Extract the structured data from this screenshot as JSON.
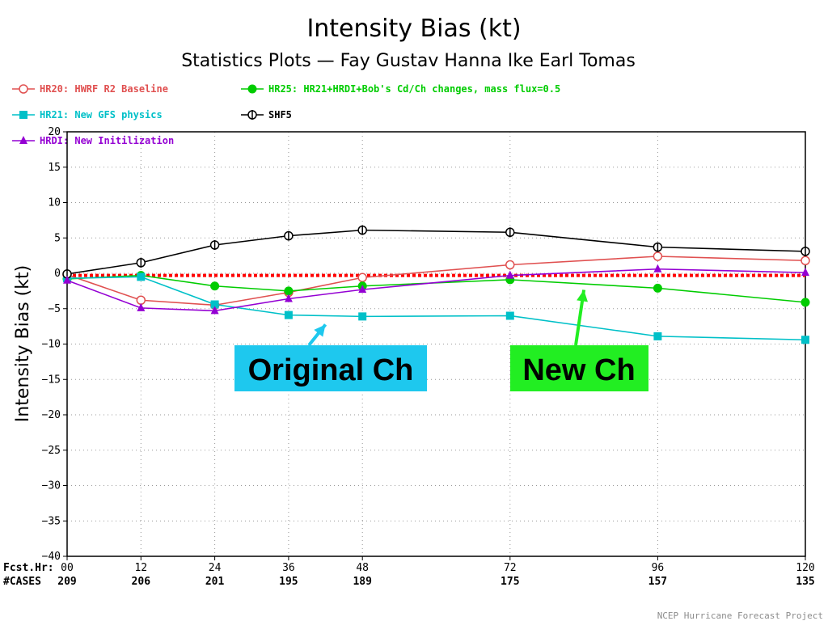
{
  "chart_data": {
    "type": "line",
    "title": "Intensity Bias (kt)",
    "subtitle": "Statistics Plots — Fay Gustav Hanna Ike Earl Tomas",
    "ylabel": "Intensity Bias (kt)",
    "xlabel": "Fcst.Hr:",
    "cases_label": "#CASES",
    "ylim": [
      -40,
      20
    ],
    "yticks": [
      20,
      15,
      10,
      5,
      0,
      -5,
      -10,
      -15,
      -20,
      -25,
      -30,
      -35,
      -40
    ],
    "ytick_labels": [
      "20",
      "15",
      "10",
      "5",
      "0",
      "−5",
      "−10",
      "−15",
      "−20",
      "−25",
      "−30",
      "−35",
      "−40"
    ],
    "x": [
      0,
      12,
      24,
      36,
      48,
      72,
      96,
      120
    ],
    "x_labels": [
      "00",
      "12",
      "24",
      "36",
      "48",
      "72",
      "96",
      "120"
    ],
    "cases": [
      "209",
      "206",
      "201",
      "195",
      "189",
      "175",
      "157",
      "135"
    ],
    "grid": true,
    "zero_line": {
      "y": -0.3,
      "color": "#ff0000"
    },
    "series": [
      {
        "name": "HR20: HWRF R2 Baseline",
        "color": "#e05050",
        "marker": "open-circle",
        "values": [
          -0.2,
          -3.8,
          -4.5,
          -2.7,
          -0.6,
          1.2,
          2.4,
          1.8
        ]
      },
      {
        "name": "HR25: HR21+HRDI+Bob's Cd/Ch changes, mass flux=0.5",
        "color": "#00cc00",
        "marker": "filled-circle",
        "values": [
          -0.8,
          -0.3,
          -1.8,
          -2.5,
          -1.8,
          -0.9,
          -2.1,
          -4.1
        ]
      },
      {
        "name": "HR21: New GFS physics",
        "color": "#00c0c8",
        "marker": "square",
        "values": [
          -0.7,
          -0.5,
          -4.4,
          -5.9,
          -6.1,
          -6.0,
          -8.9,
          -9.4
        ]
      },
      {
        "name": "SHF5",
        "color": "#000000",
        "marker": "crossed-circle",
        "values": [
          -0.1,
          1.5,
          4.0,
          5.3,
          6.1,
          5.8,
          3.7,
          3.1
        ]
      },
      {
        "name": "HRDI: New Initilization",
        "color": "#9400d3",
        "marker": "triangle",
        "values": [
          -1.0,
          -4.9,
          -5.3,
          -3.6,
          -2.3,
          -0.3,
          0.6,
          0.1
        ]
      }
    ],
    "annotations": [
      {
        "text": "Original Ch",
        "bg": "#1ec8ee",
        "points_to_x": 42,
        "points_to_y": -6.1
      },
      {
        "text": "New Ch",
        "bg": "#22ee22",
        "points_to_x": 84,
        "points_to_y": -1.2
      }
    ]
  },
  "footer": {
    "credit": "NCEP Hurricane Forecast Project"
  }
}
